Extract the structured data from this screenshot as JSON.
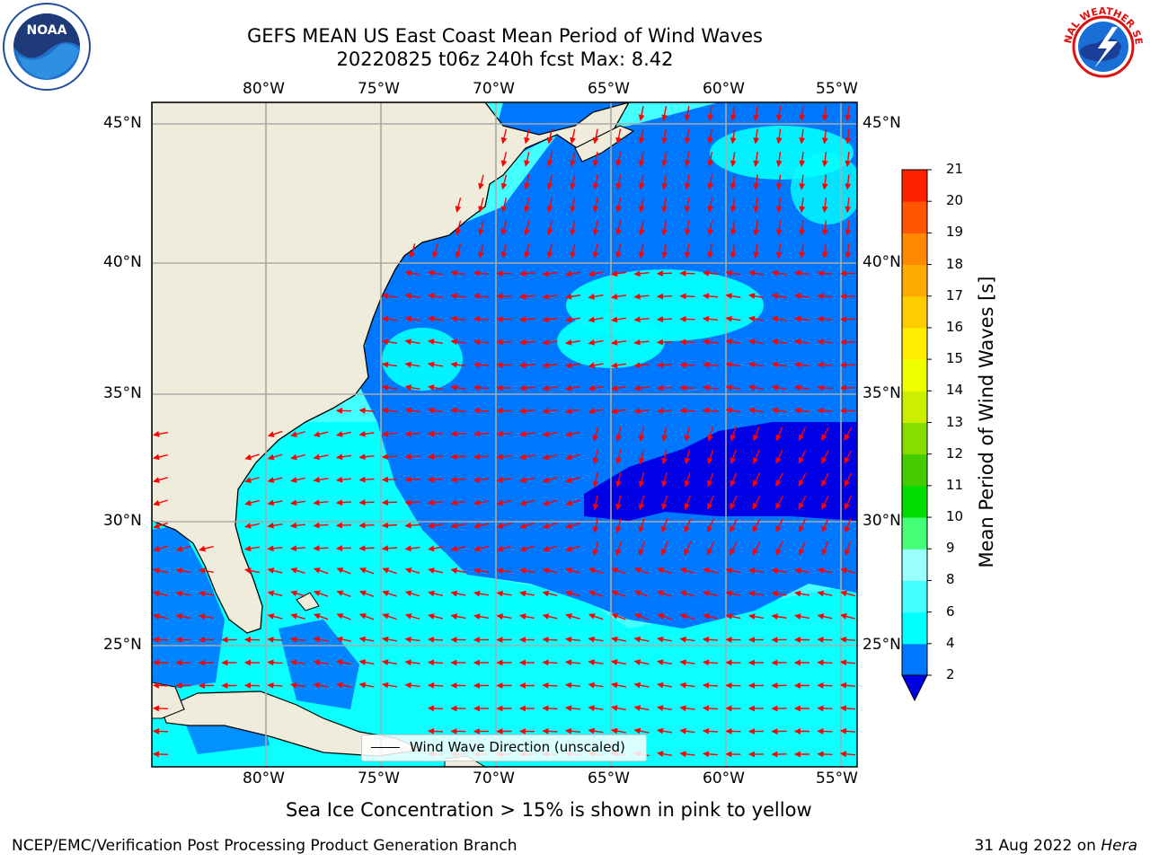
{
  "title": {
    "line1": "GEFS MEAN US East Coast Mean Period of Wind Waves",
    "line2": "20220825 t06z 240h fcst   Max: 8.42"
  },
  "logos": {
    "left": "NOAA",
    "right": "NATIONAL WEATHER SERVICE"
  },
  "map": {
    "lon_labels": [
      "80°W",
      "75°W",
      "70°W",
      "65°W",
      "60°W",
      "55°W"
    ],
    "lat_labels": [
      "45°N",
      "40°N",
      "35°N",
      "30°N",
      "25°N"
    ],
    "legend_label": "Wind Wave Direction (unscaled)",
    "land_color": "#efecdc",
    "ocean_colors": {
      "under": "#0000e6",
      "2-4": "#0077ff",
      "4-6": "#00ffff",
      "6-8": "#44ffff",
      "8-9": "#99ffff"
    },
    "arrow_color": "#ff0000"
  },
  "colorbar": {
    "title": "Mean Period of Wind Waves [s]",
    "ticks": [
      "2",
      "4",
      "6",
      "8",
      "9",
      "10",
      "11",
      "12",
      "13",
      "14",
      "15",
      "16",
      "17",
      "18",
      "19",
      "20",
      "21"
    ],
    "colors": [
      "#0077ff",
      "#00ffff",
      "#44ffff",
      "#99ffff",
      "#44ff77",
      "#00dd00",
      "#44cc00",
      "#88dd00",
      "#ccee00",
      "#eeff00",
      "#ffee00",
      "#ffcc00",
      "#ffaa00",
      "#ff8800",
      "#ff5500",
      "#ff2200",
      "#ff0000"
    ],
    "under_color": "#0000e6"
  },
  "footer": {
    "note": "Sea Ice Concentration > 15% is shown in pink to yellow",
    "credit": "NCEP/EMC/Verification Post Processing Product Generation Branch",
    "date": "31 Aug 2022 on ",
    "machine": "Hera"
  }
}
